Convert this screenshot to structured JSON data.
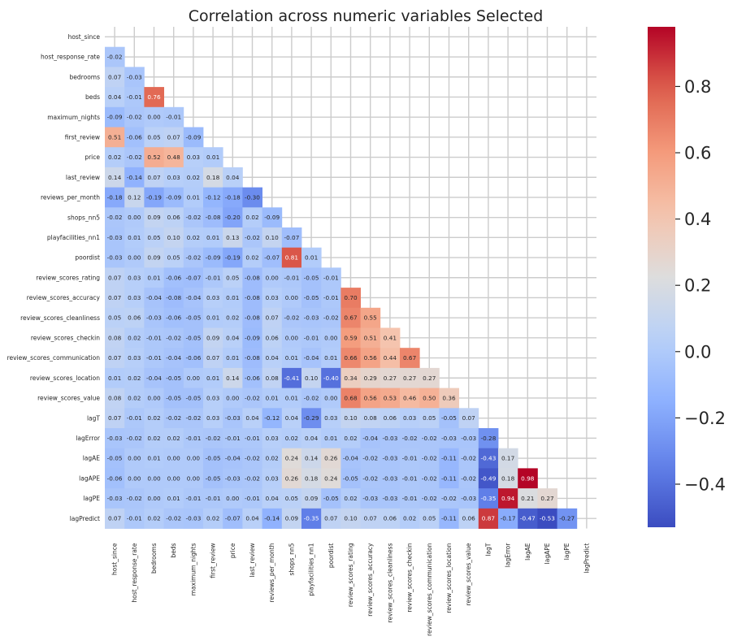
{
  "chart_data": {
    "type": "heatmap",
    "title": "Correlation across numeric variables Selected",
    "xlabel": "",
    "ylabel": "",
    "labels": [
      "host_since",
      "host_response_rate",
      "bedrooms",
      "beds",
      "maximum_nights",
      "first_review",
      "price",
      "last_review",
      "reviews_per_month",
      "shops_nn5",
      "playfacilities_nn1",
      "poordist",
      "review_scores_rating",
      "review_scores_accuracy",
      "review_scores_cleanliness",
      "review_scores_checkin",
      "review_scores_communication",
      "review_scores_location",
      "review_scores_value",
      "lagT",
      "lagError",
      "lagAE",
      "lagAPE",
      "lagPE",
      "lagPredict"
    ],
    "rows": [
      [],
      [
        -0.02
      ],
      [
        0.07,
        -0.03
      ],
      [
        0.04,
        -0.01,
        0.76
      ],
      [
        -0.09,
        -0.02,
        -0.0,
        -0.01
      ],
      [
        0.51,
        -0.06,
        0.05,
        0.07,
        -0.09
      ],
      [
        0.02,
        -0.02,
        0.52,
        0.48,
        0.03,
        0.01
      ],
      [
        0.14,
        -0.14,
        0.07,
        0.03,
        0.02,
        0.18,
        0.04
      ],
      [
        -0.18,
        0.12,
        -0.19,
        -0.09,
        0.01,
        -0.12,
        -0.18,
        -0.3
      ],
      [
        -0.02,
        0.0,
        0.09,
        0.06,
        -0.02,
        -0.08,
        -0.2,
        0.02,
        -0.09
      ],
      [
        -0.03,
        0.01,
        0.05,
        0.1,
        0.02,
        0.01,
        0.13,
        -0.02,
        0.1,
        -0.07
      ],
      [
        -0.03,
        0.0,
        0.09,
        0.05,
        -0.02,
        -0.09,
        -0.19,
        0.02,
        -0.07,
        0.81,
        0.01
      ],
      [
        0.07,
        0.03,
        0.01,
        -0.06,
        -0.07,
        -0.01,
        0.05,
        -0.08,
        -0.0,
        -0.01,
        -0.05,
        -0.01
      ],
      [
        0.07,
        0.03,
        -0.04,
        -0.08,
        -0.04,
        0.03,
        0.01,
        -0.08,
        0.03,
        0.0,
        -0.05,
        -0.01,
        0.7
      ],
      [
        0.05,
        0.06,
        -0.03,
        -0.06,
        -0.05,
        0.01,
        0.02,
        -0.08,
        0.07,
        -0.02,
        -0.03,
        -0.02,
        0.67,
        0.55
      ],
      [
        0.08,
        0.02,
        -0.01,
        -0.02,
        -0.05,
        0.09,
        0.04,
        -0.09,
        0.06,
        -0.0,
        -0.01,
        -0.0,
        0.59,
        0.51,
        0.41
      ],
      [
        0.07,
        0.03,
        -0.01,
        -0.04,
        -0.06,
        0.07,
        0.01,
        -0.08,
        0.04,
        0.01,
        -0.04,
        0.01,
        0.66,
        0.56,
        0.44,
        0.67
      ],
      [
        0.01,
        0.02,
        -0.04,
        -0.05,
        0.0,
        0.01,
        0.14,
        -0.06,
        0.08,
        -0.41,
        0.1,
        -0.4,
        0.34,
        0.29,
        0.27,
        0.27,
        0.27
      ],
      [
        0.08,
        0.02,
        -0.0,
        -0.05,
        -0.05,
        0.03,
        0.0,
        -0.02,
        0.01,
        0.01,
        -0.02,
        0.0,
        0.68,
        0.56,
        0.53,
        0.46,
        0.5,
        0.36
      ],
      [
        0.07,
        -0.01,
        0.02,
        -0.02,
        -0.02,
        0.03,
        -0.03,
        0.04,
        -0.12,
        0.04,
        -0.29,
        0.03,
        0.1,
        0.08,
        0.06,
        0.03,
        0.05,
        -0.05,
        0.07
      ],
      [
        -0.03,
        -0.02,
        0.02,
        0.02,
        -0.01,
        -0.02,
        -0.01,
        -0.01,
        0.03,
        0.02,
        0.04,
        0.01,
        0.02,
        -0.04,
        -0.03,
        -0.02,
        -0.02,
        -0.03,
        -0.03,
        -0.28
      ],
      [
        -0.05,
        -0.0,
        0.01,
        0.0,
        0.0,
        -0.05,
        -0.04,
        -0.02,
        0.02,
        0.24,
        0.14,
        0.26,
        -0.04,
        -0.02,
        -0.03,
        -0.01,
        -0.02,
        -0.11,
        -0.02,
        -0.43,
        0.17
      ],
      [
        -0.06,
        -0.0,
        0.0,
        0.0,
        0.0,
        -0.05,
        -0.03,
        -0.02,
        0.03,
        0.26,
        0.18,
        0.24,
        -0.05,
        -0.02,
        -0.03,
        -0.01,
        -0.02,
        -0.11,
        -0.02,
        -0.49,
        0.18,
        0.98
      ],
      [
        -0.03,
        -0.02,
        0.0,
        0.01,
        -0.01,
        -0.01,
        0.0,
        -0.01,
        0.04,
        0.05,
        0.09,
        -0.05,
        0.02,
        -0.03,
        -0.03,
        -0.01,
        -0.02,
        -0.02,
        -0.03,
        -0.35,
        0.94,
        0.21,
        0.27
      ],
      [
        0.07,
        -0.01,
        0.02,
        -0.02,
        -0.03,
        0.02,
        -0.07,
        0.04,
        -0.14,
        0.09,
        -0.35,
        0.07,
        0.1,
        0.07,
        0.06,
        0.02,
        0.05,
        -0.11,
        0.06,
        0.87,
        -0.17,
        -0.47,
        -0.53,
        -0.27
      ]
    ],
    "vmin": -0.53,
    "vmax": 0.98,
    "colormap": "coolwarm",
    "colorbar_ticks": [
      -0.4,
      -0.2,
      0.0,
      0.2,
      0.4,
      0.6,
      0.8
    ],
    "colorbar_tick_labels": [
      "−0.4",
      "−0.2",
      "0.0",
      "0.2",
      "0.4",
      "0.6",
      "0.8"
    ],
    "mask": "upper-triangle",
    "grid": true
  }
}
